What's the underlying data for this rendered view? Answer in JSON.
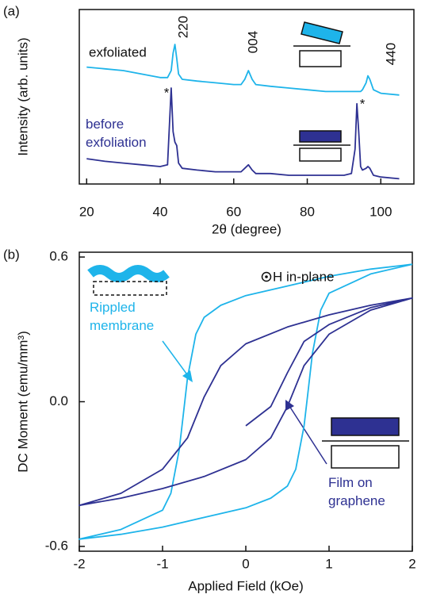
{
  "chart_data": [
    {
      "type": "line",
      "panel_label": "(a)",
      "xlabel": "2θ (degree)",
      "ylabel": "Intensity (arb. units)",
      "xlim": [
        18,
        109
      ],
      "xticks": [
        20,
        40,
        60,
        80,
        100
      ],
      "ylim": [
        0,
        100
      ],
      "x": [
        20,
        25,
        30,
        35,
        40,
        42,
        43,
        43.5,
        44,
        44.5,
        45,
        46,
        50,
        55,
        60,
        62,
        63,
        64,
        65,
        66,
        70,
        75,
        80,
        85,
        90,
        92,
        93,
        93.5,
        94,
        94.5,
        95,
        96,
        96.5,
        97,
        98,
        100,
        105
      ],
      "series": [
        {
          "name": "exfoliated",
          "color": "#1eb4ea",
          "values": [
            67,
            66,
            65,
            63,
            61,
            61,
            65,
            75,
            80,
            72,
            63,
            60,
            59,
            58,
            57,
            57,
            60,
            65,
            60,
            57,
            56,
            55,
            54,
            53,
            53,
            53,
            53,
            53,
            53,
            53,
            54,
            58,
            62,
            60,
            54,
            52,
            51
          ]
        },
        {
          "name": "before exfoliation",
          "color": "#2e3192",
          "values": [
            14.5,
            13,
            12,
            11,
            10,
            11,
            55,
            30,
            24,
            22,
            12,
            9,
            8,
            7,
            7,
            7,
            9,
            11,
            8,
            6,
            6,
            5,
            5,
            5,
            5,
            6,
            20,
            46,
            30,
            10,
            8,
            9,
            10,
            9,
            5,
            4,
            3
          ]
        }
      ],
      "annotations": [
        "220",
        "004",
        "440",
        "*",
        "*"
      ]
    },
    {
      "type": "line",
      "panel_label": "(b)",
      "xlabel": "Applied Field (kOe)",
      "ylabel": "DC Moment (emu/mm³)",
      "xlim": [
        -2,
        2
      ],
      "xticks": [
        -2,
        -1,
        0,
        1,
        2
      ],
      "ylim": [
        -0.62,
        0.62
      ],
      "yticks": [
        {
          "value": -0.6,
          "label": "-0.6"
        },
        {
          "value": 0,
          "label": "0.0"
        },
        {
          "value": 0.6,
          "label": "0.6"
        }
      ],
      "series": [
        {
          "name": "Rippled membrane",
          "color": "#1eb4ea",
          "x": [
            2,
            1.5,
            1,
            0.5,
            0,
            -0.3,
            -0.5,
            -0.6,
            -0.7,
            -0.75,
            -0.8,
            -0.9,
            -1,
            -1.5,
            -2,
            -1.5,
            -1,
            -0.5,
            0,
            0.3,
            0.5,
            0.6,
            0.7,
            0.75,
            0.8,
            0.9,
            1,
            1.5,
            2
          ],
          "values": [
            0.57,
            0.55,
            0.52,
            0.48,
            0.44,
            0.4,
            0.35,
            0.28,
            0.1,
            -0.05,
            -0.2,
            -0.38,
            -0.45,
            -0.53,
            -0.57,
            -0.55,
            -0.52,
            -0.48,
            -0.44,
            -0.4,
            -0.35,
            -0.28,
            -0.1,
            0.05,
            0.2,
            0.38,
            0.45,
            0.53,
            0.57
          ]
        },
        {
          "name": "Film on graphene",
          "color": "#2e3192",
          "x": [
            0,
            0.3,
            0.5,
            0.7,
            1,
            1.5,
            2,
            1.5,
            1,
            0.5,
            0,
            -0.3,
            -0.5,
            -0.7,
            -1,
            -1.5,
            -2,
            -1.5,
            -1,
            -0.5,
            0,
            0.3,
            0.5,
            0.7,
            1,
            1.5,
            2
          ],
          "values": [
            -0.1,
            -0.02,
            0.12,
            0.25,
            0.32,
            0.39,
            0.43,
            0.4,
            0.36,
            0.31,
            0.24,
            0.15,
            0.02,
            -0.15,
            -0.28,
            -0.38,
            -0.43,
            -0.4,
            -0.36,
            -0.31,
            -0.24,
            -0.15,
            -0.02,
            0.15,
            0.28,
            0.38,
            0.43
          ]
        }
      ],
      "annotations": [
        "H in-plane"
      ]
    }
  ]
}
